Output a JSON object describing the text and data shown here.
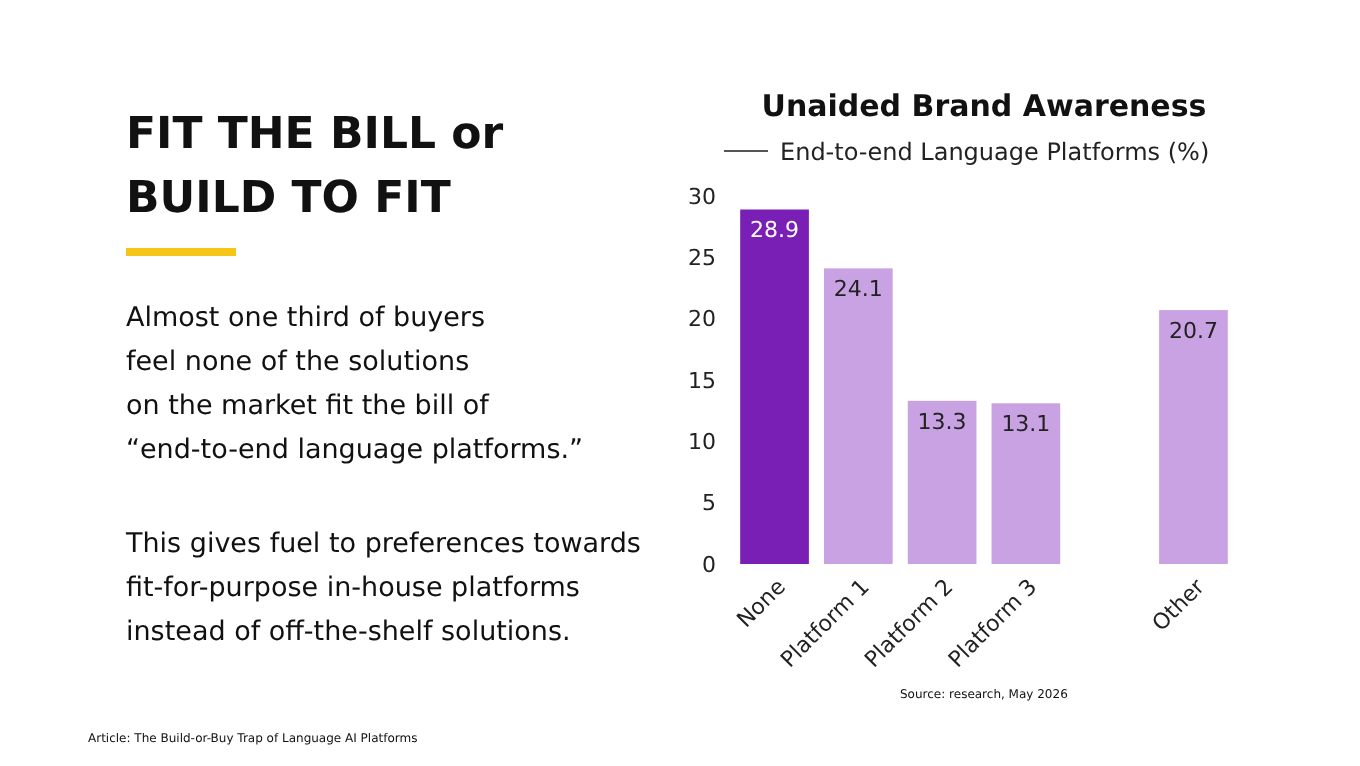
{
  "chart_data": {
    "type": "bar",
    "title": "Unaided Brand Awareness",
    "subtitle": "End-to-end Language Platforms (%)",
    "categories": [
      "None",
      "Platform 1",
      "Platform 2",
      "Platform 3",
      null,
      "Other"
    ],
    "values": [
      28.9,
      24.1,
      13.3,
      13.1,
      null,
      20.7
    ],
    "colors": [
      "#7a1fb5",
      "#c9a2e3",
      "#c9a2e3",
      "#c9a2e3",
      null,
      "#c9a2e3"
    ],
    "ylim": [
      0,
      30
    ],
    "yticks": [
      0,
      5,
      10,
      15,
      20,
      25,
      30
    ],
    "grid": false,
    "data_labels": true,
    "annotations": [
      "FIT THE BILL or",
      "BUILD TO FIT",
      "Almost one third of buyers",
      "feel none of the solutions",
      "on the market fit the bill of",
      "“end-to-end language platforms.”",
      "This gives fuel to preferences towards",
      "fit-for-purpose in-house platforms",
      "instead of off-the-shelf solutions.",
      "Source: research, May 2026",
      "Article: The Build-or-Buy Trap of Language AI Platforms"
    ]
  }
}
